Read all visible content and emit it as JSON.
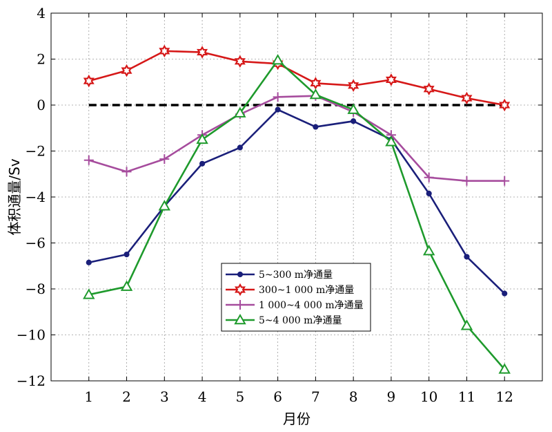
{
  "chart_data": {
    "type": "line",
    "title": "",
    "xlabel": "月份",
    "ylabel": "体积通量/Sv",
    "x": [
      1,
      2,
      3,
      4,
      5,
      6,
      7,
      8,
      9,
      10,
      11,
      12
    ],
    "xlim": [
      0,
      13
    ],
    "ylim": [
      -12,
      4
    ],
    "xticks": [
      1,
      2,
      3,
      4,
      5,
      6,
      7,
      8,
      9,
      10,
      11,
      12
    ],
    "yticks": [
      -12,
      -10,
      -8,
      -6,
      -4,
      -2,
      0,
      2,
      4
    ],
    "grid": true,
    "legend_position": "bottom-center",
    "zero_line": {
      "y": 0,
      "x_range": [
        1,
        12
      ],
      "style": "dashed",
      "color": "#000000"
    },
    "series": [
      {
        "name": "5~300 m净通量",
        "color": "#1a1f7a",
        "marker": "dot",
        "values": [
          -6.85,
          -6.5,
          -4.4,
          -2.55,
          -1.85,
          -0.2,
          -0.95,
          -0.7,
          -1.5,
          -3.85,
          -6.6,
          -8.2
        ]
      },
      {
        "name": "300~1 000 m净通量",
        "color": "#d61818",
        "marker": "hexstar",
        "values": [
          1.05,
          1.5,
          2.35,
          2.3,
          1.9,
          1.8,
          0.95,
          0.85,
          1.1,
          0.7,
          0.3,
          0.0
        ]
      },
      {
        "name": "1 000~4 000 m净通量",
        "color": "#a64c9d",
        "marker": "plus",
        "values": [
          -2.4,
          -2.9,
          -2.35,
          -1.3,
          -0.4,
          0.35,
          0.4,
          -0.3,
          -1.3,
          -3.15,
          -3.3,
          -3.3
        ]
      },
      {
        "name": "5~4 000 m净通量",
        "color": "#1e9a2c",
        "marker": "triangle",
        "values": [
          -8.25,
          -7.9,
          -4.4,
          -1.5,
          -0.35,
          1.95,
          0.45,
          -0.2,
          -1.6,
          -6.35,
          -9.6,
          -11.5
        ]
      }
    ]
  }
}
